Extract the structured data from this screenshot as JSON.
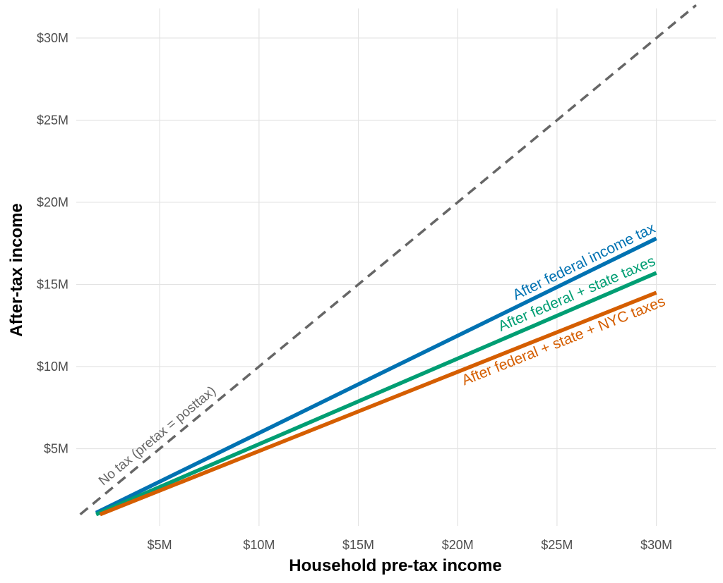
{
  "chart_data": {
    "type": "line",
    "title": "",
    "xlabel": "Household pre-tax income",
    "ylabel": "After-tax income",
    "xlim": [
      0.8,
      33.0
    ],
    "ylim": [
      0.3,
      31.8
    ],
    "x_ticks": [
      5,
      10,
      15,
      20,
      25,
      30
    ],
    "x_tick_labels": [
      "$5M",
      "$10M",
      "$15M",
      "$20M",
      "$25M",
      "$30M"
    ],
    "y_ticks": [
      5,
      10,
      15,
      20,
      25,
      30
    ],
    "y_tick_labels": [
      "$5M",
      "$10M",
      "$15M",
      "$20M",
      "$25M",
      "$30M"
    ],
    "grid": true,
    "legend": "none (direct labels on lines)",
    "reference_line": {
      "label": "No tax (pretax = posttax)",
      "x": [
        1.0,
        32.0
      ],
      "y": [
        1.0,
        32.0
      ],
      "color": "#666666",
      "style": "dashed"
    },
    "series": [
      {
        "name": "After federal income tax",
        "x": [
          1.8,
          30.0
        ],
        "y": [
          1.1,
          17.8
        ],
        "color": "#0072B2"
      },
      {
        "name": "After federal + state taxes",
        "x": [
          1.8,
          30.0
        ],
        "y": [
          1.0,
          15.7
        ],
        "color": "#009E73"
      },
      {
        "name": "After federal + state + NYC taxes",
        "x": [
          2.0,
          30.0
        ],
        "y": [
          1.0,
          14.5
        ],
        "color": "#D55E00"
      }
    ]
  }
}
